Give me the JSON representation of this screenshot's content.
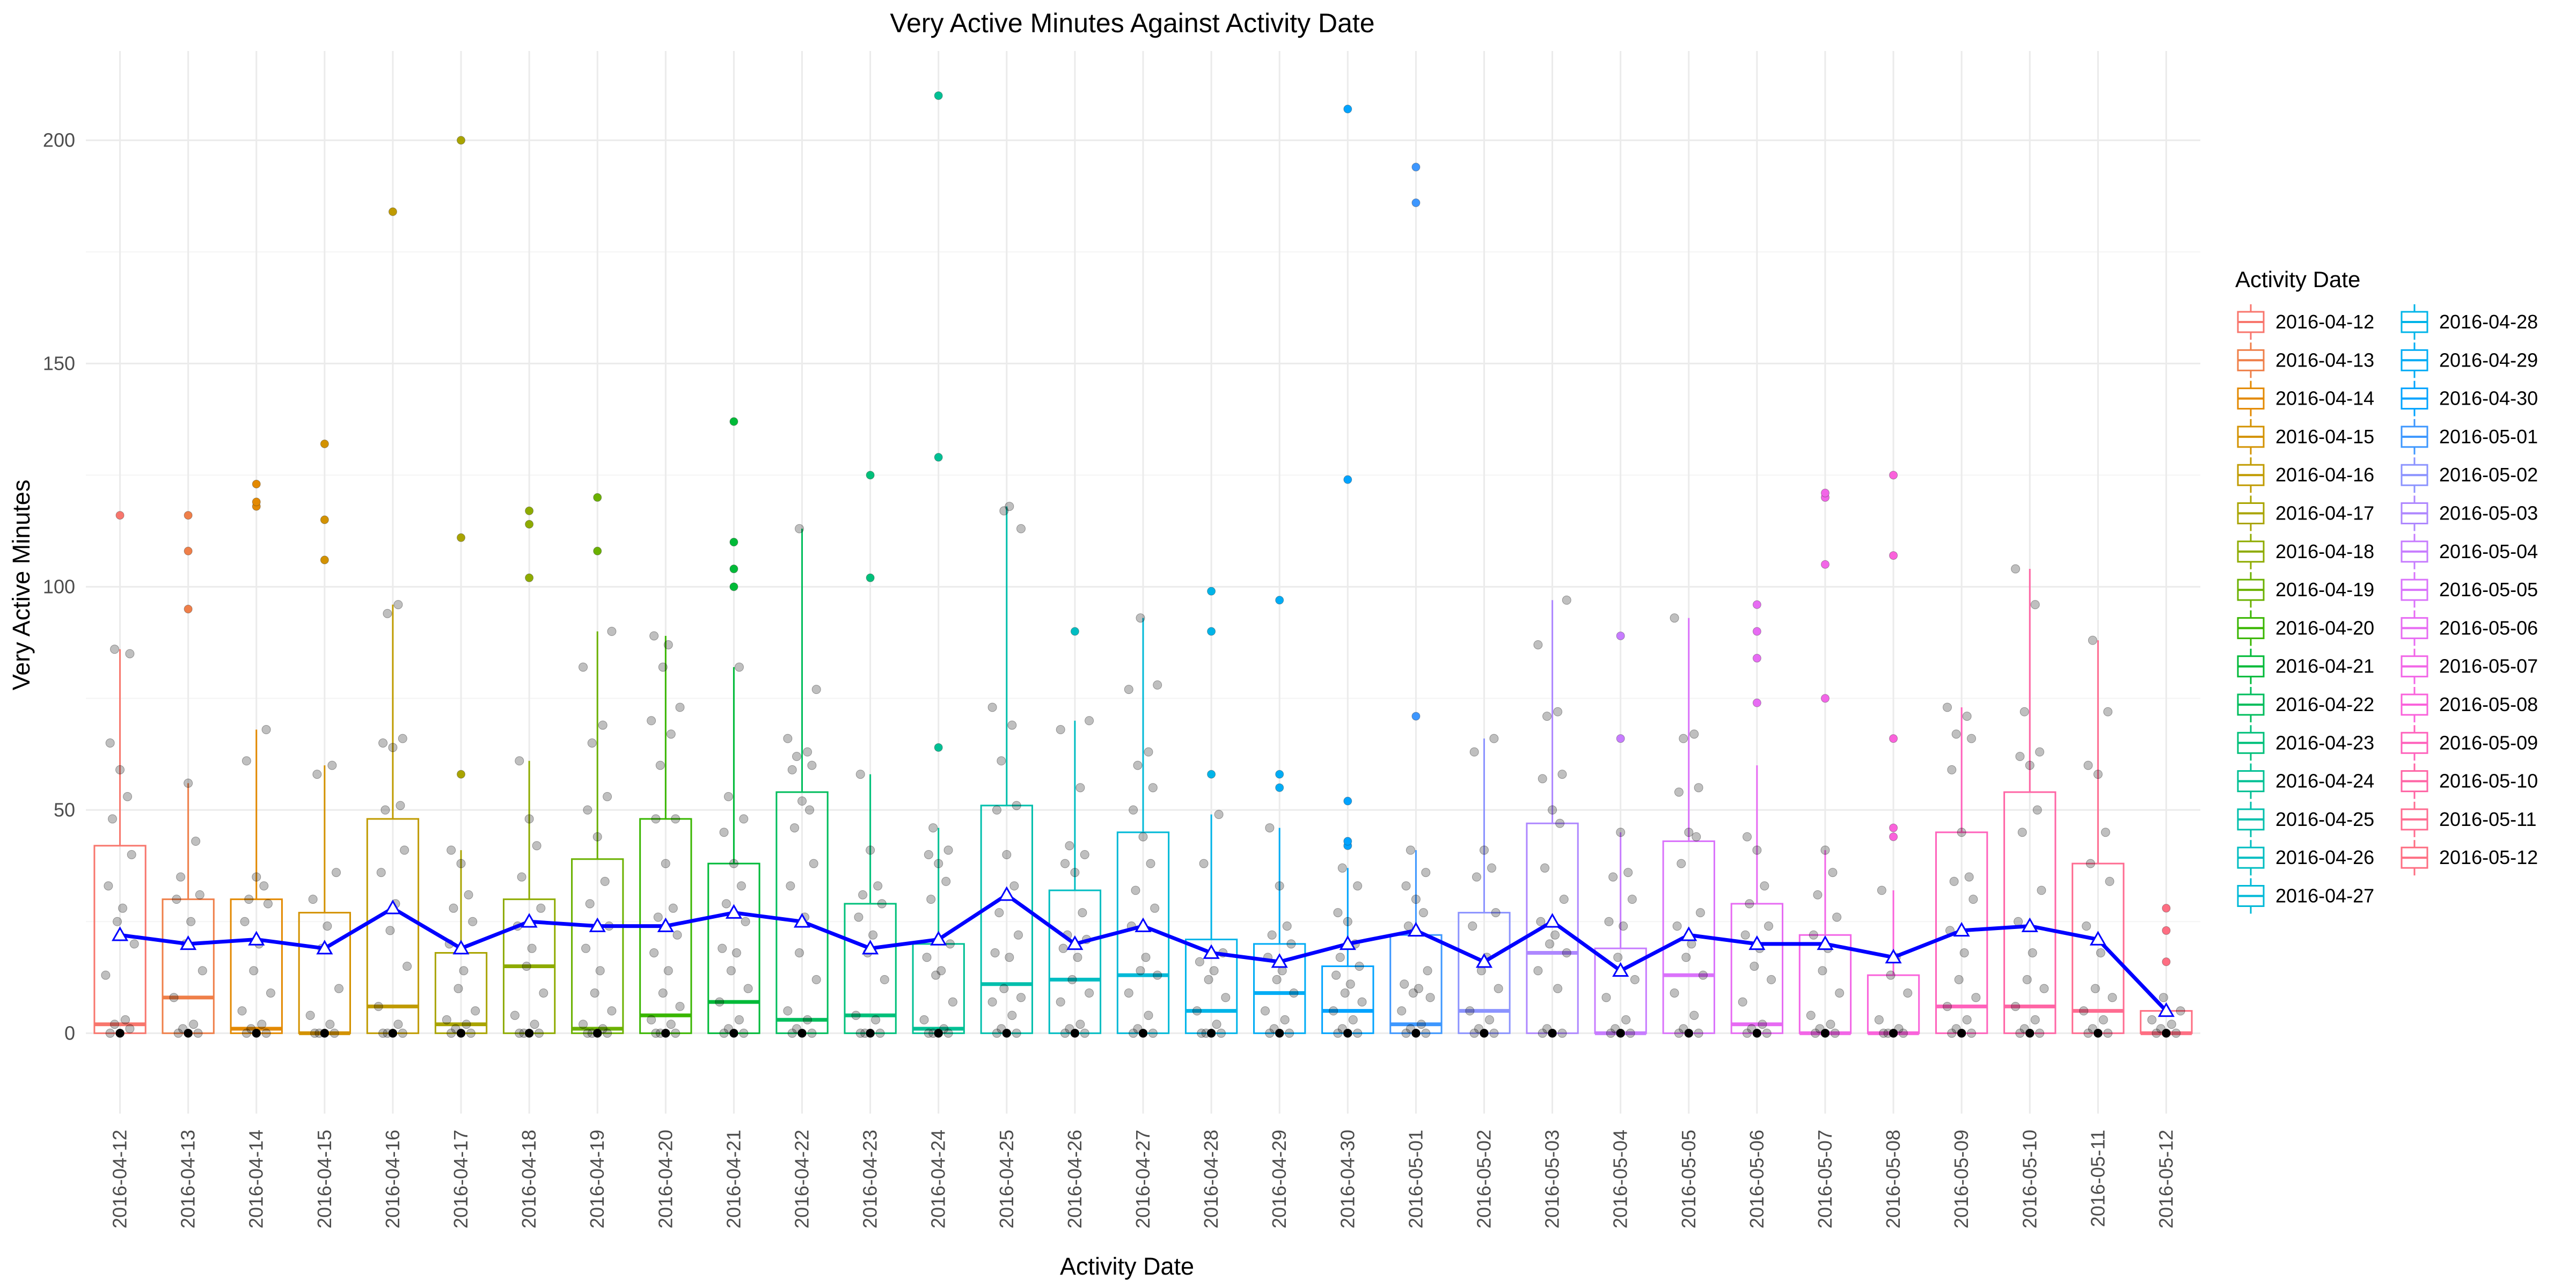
{
  "chart_data": {
    "type": "box",
    "title": "Very Active Minutes Against Activity Date",
    "xlabel": "Activity Date",
    "ylabel": "Very Active Minutes",
    "ylim": [
      -18,
      220
    ],
    "yticks": [
      0,
      50,
      100,
      150,
      200
    ],
    "grid": true,
    "legend": {
      "title": "Activity Date",
      "position": "right",
      "columns": 2
    },
    "mean_line_color": "#0000FF",
    "categories": [
      "2016-04-12",
      "2016-04-13",
      "2016-04-14",
      "2016-04-15",
      "2016-04-16",
      "2016-04-17",
      "2016-04-18",
      "2016-04-19",
      "2016-04-20",
      "2016-04-21",
      "2016-04-22",
      "2016-04-23",
      "2016-04-24",
      "2016-04-25",
      "2016-04-26",
      "2016-04-27",
      "2016-04-28",
      "2016-04-29",
      "2016-04-30",
      "2016-05-01",
      "2016-05-02",
      "2016-05-03",
      "2016-05-04",
      "2016-05-05",
      "2016-05-06",
      "2016-05-07",
      "2016-05-08",
      "2016-05-09",
      "2016-05-10",
      "2016-05-11",
      "2016-05-12"
    ],
    "colors": [
      "#F8766D",
      "#EF7F49",
      "#E38900",
      "#D39200",
      "#C09B00",
      "#A9A400",
      "#8EAB00",
      "#6BB100",
      "#39B600",
      "#00BA38",
      "#00BD5C",
      "#00C07A",
      "#00C094",
      "#00BFAC",
      "#00BDC2",
      "#00B9D7",
      "#00B4E8",
      "#00ACF5",
      "#00A3FF",
      "#3D97FF",
      "#8B93FF",
      "#AE87FF",
      "#C77CFF",
      "#DA72FB",
      "#E76BF3",
      "#F265E7",
      "#FA62DB",
      "#FF62BC",
      "#FF65A5",
      "#FF6C91",
      "#FE6E82"
    ],
    "boxes": [
      {
        "lower": 0,
        "q1": 0,
        "median": 2,
        "q3": 42,
        "upper": 86
      },
      {
        "lower": 0,
        "q1": 0,
        "median": 8,
        "q3": 30,
        "upper": 56
      },
      {
        "lower": 0,
        "q1": 0,
        "median": 1,
        "q3": 30,
        "upper": 68
      },
      {
        "lower": 0,
        "q1": 0,
        "median": 0,
        "q3": 27,
        "upper": 60
      },
      {
        "lower": 0,
        "q1": 0,
        "median": 6,
        "q3": 48,
        "upper": 96
      },
      {
        "lower": 0,
        "q1": 0,
        "median": 2,
        "q3": 18,
        "upper": 41
      },
      {
        "lower": 0,
        "q1": 0,
        "median": 15,
        "q3": 30,
        "upper": 61
      },
      {
        "lower": 0,
        "q1": 0,
        "median": 1,
        "q3": 39,
        "upper": 90
      },
      {
        "lower": 0,
        "q1": 0,
        "median": 4,
        "q3": 48,
        "upper": 89
      },
      {
        "lower": 0,
        "q1": 0,
        "median": 7,
        "q3": 38,
        "upper": 82
      },
      {
        "lower": 0,
        "q1": 0,
        "median": 3,
        "q3": 54,
        "upper": 113
      },
      {
        "lower": 0,
        "q1": 0,
        "median": 4,
        "q3": 29,
        "upper": 58
      },
      {
        "lower": 0,
        "q1": 0,
        "median": 1,
        "q3": 20,
        "upper": 46
      },
      {
        "lower": 0,
        "q1": 0,
        "median": 11,
        "q3": 51,
        "upper": 118
      },
      {
        "lower": 0,
        "q1": 0,
        "median": 12,
        "q3": 32,
        "upper": 70
      },
      {
        "lower": 0,
        "q1": 0,
        "median": 13,
        "q3": 45,
        "upper": 93
      },
      {
        "lower": 0,
        "q1": 0,
        "median": 5,
        "q3": 21,
        "upper": 49
      },
      {
        "lower": 0,
        "q1": 0,
        "median": 9,
        "q3": 20,
        "upper": 46
      },
      {
        "lower": 0,
        "q1": 0,
        "median": 5,
        "q3": 15,
        "upper": 37
      },
      {
        "lower": 0,
        "q1": 0,
        "median": 2,
        "q3": 22,
        "upper": 41
      },
      {
        "lower": 0,
        "q1": 0,
        "median": 5,
        "q3": 27,
        "upper": 66
      },
      {
        "lower": 0,
        "q1": 0,
        "median": 18,
        "q3": 47,
        "upper": 97
      },
      {
        "lower": 0,
        "q1": 0,
        "median": 0,
        "q3": 19,
        "upper": 45
      },
      {
        "lower": 0,
        "q1": 0,
        "median": 13,
        "q3": 43,
        "upper": 93
      },
      {
        "lower": 0,
        "q1": 0,
        "median": 2,
        "q3": 29,
        "upper": 60
      },
      {
        "lower": 0,
        "q1": 0,
        "median": 0,
        "q3": 22,
        "upper": 41
      },
      {
        "lower": 0,
        "q1": 0,
        "median": 0,
        "q3": 13,
        "upper": 32
      },
      {
        "lower": 0,
        "q1": 0,
        "median": 6,
        "q3": 45,
        "upper": 73
      },
      {
        "lower": 0,
        "q1": 0,
        "median": 6,
        "q3": 54,
        "upper": 104
      },
      {
        "lower": 0,
        "q1": 0,
        "median": 5,
        "q3": 38,
        "upper": 88
      },
      {
        "lower": 0,
        "q1": 0,
        "median": 0,
        "q3": 5,
        "upper": 5
      }
    ],
    "outliers": [
      [
        116
      ],
      [
        95,
        108,
        116
      ],
      [
        118,
        119,
        123
      ],
      [
        106,
        115,
        132
      ],
      [
        184
      ],
      [
        58,
        111,
        200
      ],
      [
        102,
        114,
        117
      ],
      [
        108,
        120
      ],
      [],
      [
        100,
        104,
        110,
        137
      ],
      [],
      [
        102,
        125
      ],
      [
        64,
        129,
        210
      ],
      [],
      [
        90
      ],
      [],
      [
        58,
        90,
        99
      ],
      [
        55,
        58,
        97
      ],
      [
        42,
        43,
        52,
        124,
        207
      ],
      [
        71,
        186,
        194
      ],
      [],
      [],
      [
        66,
        89
      ],
      [],
      [
        74,
        84,
        90,
        96
      ],
      [
        75,
        105,
        120,
        121
      ],
      [
        44,
        46,
        66,
        107,
        125
      ],
      [],
      [],
      [],
      [
        16,
        23,
        28
      ]
    ],
    "points": [
      [
        0,
        0,
        1,
        2,
        3,
        13,
        20,
        25,
        28,
        33,
        40,
        48,
        53,
        59,
        65,
        85,
        86
      ],
      [
        0,
        0,
        0,
        1,
        2,
        8,
        14,
        20,
        25,
        30,
        31,
        35,
        43,
        56
      ],
      [
        0,
        0,
        0,
        1,
        2,
        5,
        9,
        14,
        20,
        25,
        29,
        30,
        33,
        35,
        61,
        68
      ],
      [
        0,
        0,
        0,
        0,
        2,
        4,
        10,
        19,
        24,
        30,
        36,
        58,
        60
      ],
      [
        0,
        0,
        0,
        0,
        2,
        6,
        15,
        23,
        29,
        36,
        41,
        50,
        51,
        64,
        65,
        66,
        94,
        96
      ],
      [
        0,
        0,
        0,
        1,
        2,
        3,
        5,
        10,
        14,
        20,
        25,
        28,
        31,
        38,
        41
      ],
      [
        0,
        0,
        0,
        0,
        2,
        4,
        9,
        15,
        19,
        24,
        28,
        35,
        42,
        48,
        61
      ],
      [
        0,
        0,
        0,
        0,
        1,
        2,
        5,
        9,
        14,
        19,
        24,
        29,
        34,
        44,
        50,
        53,
        65,
        69,
        82,
        90
      ],
      [
        0,
        0,
        0,
        0,
        2,
        3,
        6,
        9,
        14,
        18,
        22,
        26,
        28,
        38,
        48,
        48,
        60,
        67,
        70,
        73,
        82,
        87,
        89
      ],
      [
        0,
        0,
        0,
        1,
        3,
        7,
        10,
        14,
        18,
        19,
        25,
        29,
        33,
        38,
        45,
        48,
        53,
        82
      ],
      [
        0,
        0,
        0,
        1,
        3,
        5,
        12,
        18,
        26,
        33,
        38,
        46,
        50,
        52,
        59,
        60,
        62,
        63,
        66,
        77,
        113
      ],
      [
        0,
        0,
        0,
        0,
        3,
        4,
        12,
        18,
        22,
        26,
        29,
        31,
        33,
        41,
        58
      ],
      [
        0,
        0,
        0,
        0,
        1,
        3,
        7,
        13,
        14,
        17,
        20,
        30,
        34,
        38,
        40,
        41,
        46
      ],
      [
        0,
        0,
        0,
        1,
        4,
        7,
        8,
        10,
        17,
        18,
        22,
        27,
        33,
        40,
        50,
        51,
        61,
        69,
        73,
        113,
        117,
        118
      ],
      [
        0,
        0,
        0,
        1,
        2,
        7,
        9,
        12,
        17,
        19,
        21,
        22,
        27,
        36,
        38,
        40,
        42,
        55,
        68,
        70
      ],
      [
        0,
        0,
        0,
        1,
        4,
        9,
        13,
        14,
        17,
        24,
        28,
        32,
        38,
        44,
        50,
        55,
        60,
        63,
        77,
        78,
        93
      ],
      [
        0,
        0,
        0,
        0,
        2,
        5,
        8,
        12,
        14,
        16,
        18,
        38,
        49
      ],
      [
        0,
        0,
        0,
        1,
        3,
        5,
        9,
        12,
        14,
        17,
        20,
        22,
        24,
        33,
        46
      ],
      [
        0,
        0,
        0,
        1,
        3,
        5,
        7,
        9,
        11,
        13,
        15,
        17,
        20,
        25,
        27,
        33,
        37
      ],
      [
        0,
        0,
        0,
        1,
        2,
        5,
        8,
        9,
        10,
        11,
        14,
        24,
        27,
        30,
        33,
        36,
        41
      ],
      [
        0,
        0,
        0,
        1,
        3,
        5,
        10,
        14,
        17,
        24,
        27,
        35,
        37,
        41,
        63,
        66
      ],
      [
        0,
        0,
        0,
        1,
        10,
        14,
        18,
        20,
        22,
        25,
        30,
        37,
        47,
        50,
        57,
        58,
        71,
        72,
        87,
        97
      ],
      [
        0,
        0,
        0,
        1,
        3,
        8,
        12,
        17,
        24,
        25,
        30,
        35,
        36,
        45
      ],
      [
        0,
        0,
        0,
        1,
        4,
        9,
        13,
        17,
        20,
        24,
        27,
        38,
        44,
        45,
        54,
        55,
        66,
        67,
        93
      ],
      [
        0,
        0,
        0,
        1,
        2,
        7,
        12,
        15,
        19,
        22,
        24,
        29,
        33,
        41,
        44
      ],
      [
        0,
        0,
        0,
        1,
        2,
        4,
        9,
        14,
        19,
        22,
        26,
        31,
        36,
        41
      ],
      [
        0,
        0,
        0,
        0,
        1,
        3,
        9,
        13,
        17,
        32
      ],
      [
        0,
        0,
        0,
        1,
        3,
        6,
        8,
        12,
        18,
        23,
        30,
        34,
        35,
        45,
        59,
        66,
        67,
        71,
        73
      ],
      [
        0,
        0,
        0,
        1,
        3,
        6,
        10,
        12,
        18,
        25,
        32,
        45,
        50,
        60,
        62,
        63,
        72,
        96,
        104
      ],
      [
        0,
        0,
        0,
        1,
        3,
        5,
        8,
        10,
        18,
        24,
        34,
        38,
        45,
        58,
        60,
        72,
        88
      ],
      [
        0,
        0,
        0,
        1,
        2,
        3,
        5,
        8
      ]
    ],
    "means": [
      22,
      20,
      21,
      19,
      28,
      19,
      25,
      24,
      24,
      27,
      25,
      19,
      21,
      31,
      20,
      24,
      18,
      16,
      20,
      23,
      16,
      25,
      14,
      22,
      20,
      20,
      17,
      23,
      24,
      21,
      5
    ]
  }
}
